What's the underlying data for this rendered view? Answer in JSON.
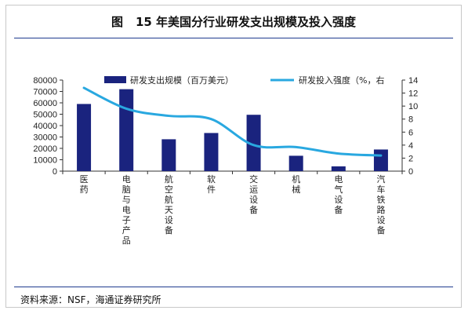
{
  "title": {
    "prefix": "图",
    "text": "15 年美国分行业研发支出规模及投入强度"
  },
  "source": "资料来源：NSF，海通证券研究所",
  "colors": {
    "bar": "#1a237e",
    "line": "#29a8e0",
    "rule": "#1f3b8f"
  },
  "chart_data": {
    "type": "bar",
    "categories": [
      "医药",
      "电脑与电子产品",
      "航空航天设备",
      "软件",
      "交运设备",
      "机械",
      "电气设备",
      "汽车铁路设备"
    ],
    "series": [
      {
        "name": "研发支出规模（百万美元）",
        "type": "bar",
        "axis": "left",
        "values": [
          59000,
          72000,
          28000,
          33500,
          49500,
          13500,
          4200,
          19000
        ]
      },
      {
        "name": "研发投入强度（%，右",
        "type": "line",
        "axis": "right",
        "values": [
          12.8,
          9.6,
          8.5,
          8.0,
          4.0,
          3.7,
          2.7,
          2.4
        ]
      }
    ],
    "y_left": {
      "lim": [
        0,
        80000
      ],
      "ticks": [
        "0",
        "10000",
        "20000",
        "30000",
        "40000",
        "50000",
        "60000",
        "70000",
        "80000"
      ]
    },
    "y_right": {
      "lim": [
        0,
        14
      ],
      "ticks": [
        "0",
        "2",
        "4",
        "6",
        "8",
        "10",
        "12",
        "14"
      ]
    },
    "legend_position": "top",
    "grid": false
  }
}
